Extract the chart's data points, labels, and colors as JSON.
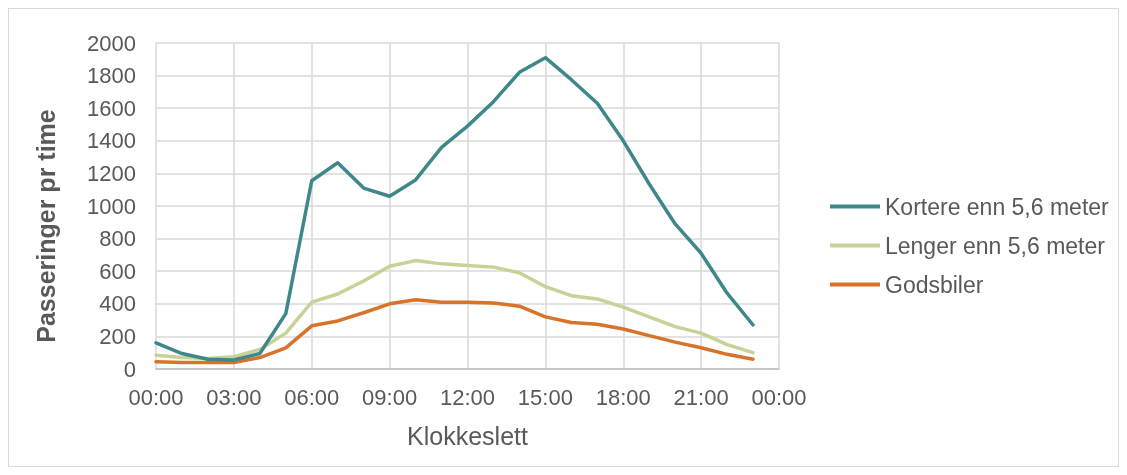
{
  "chart_data": {
    "type": "line",
    "xlabel": "Klokkeslett",
    "ylabel": "Passeringer pr time",
    "x": [
      0,
      1,
      2,
      3,
      4,
      5,
      6,
      7,
      8,
      9,
      10,
      11,
      12,
      13,
      14,
      15,
      16,
      17,
      18,
      19,
      20,
      21,
      22,
      23
    ],
    "series": [
      {
        "name": "Kortere enn 5,6 meter",
        "color": "#3e878b",
        "values": [
          160,
          95,
          60,
          55,
          95,
          340,
          1155,
          1265,
          1110,
          1060,
          1160,
          1360,
          1490,
          1640,
          1820,
          1910,
          1775,
          1630,
          1400,
          1135,
          890,
          710,
          465,
          270
        ]
      },
      {
        "name": "Lenger enn 5,6 meter",
        "color": "#c6d296",
        "values": [
          85,
          70,
          65,
          75,
          120,
          220,
          410,
          460,
          540,
          630,
          665,
          645,
          635,
          625,
          590,
          505,
          450,
          430,
          380,
          320,
          260,
          220,
          150,
          100
        ]
      },
      {
        "name": "Godsbiler",
        "color": "#d8732a",
        "values": [
          45,
          40,
          40,
          40,
          70,
          130,
          265,
          295,
          345,
          400,
          425,
          410,
          410,
          405,
          385,
          320,
          285,
          275,
          245,
          205,
          165,
          130,
          90,
          60
        ]
      }
    ],
    "xlim": [
      0,
      24
    ],
    "xticks": [
      {
        "value": 0,
        "label": "00:00"
      },
      {
        "value": 3,
        "label": "03:00"
      },
      {
        "value": 6,
        "label": "06:00"
      },
      {
        "value": 9,
        "label": "09:00"
      },
      {
        "value": 12,
        "label": "12:00"
      },
      {
        "value": 15,
        "label": "15:00"
      },
      {
        "value": 18,
        "label": "18:00"
      },
      {
        "value": 21,
        "label": "21:00"
      },
      {
        "value": 24,
        "label": "00:00"
      }
    ],
    "ylim": [
      0,
      2000
    ],
    "yticks": [
      0,
      200,
      400,
      600,
      800,
      1000,
      1200,
      1400,
      1600,
      1800,
      2000
    ],
    "grid": true,
    "legend": "right",
    "marker": "none",
    "line_style": "solid"
  }
}
